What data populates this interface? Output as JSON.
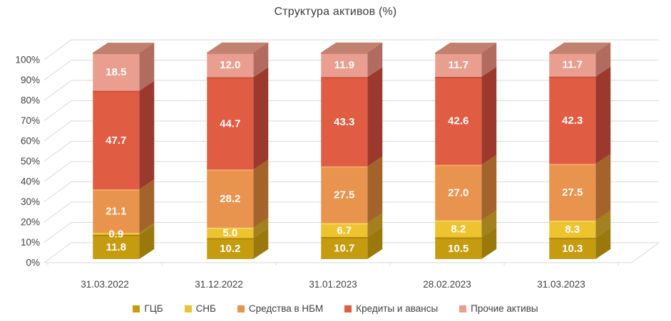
{
  "chart_data": {
    "type": "bar",
    "variant": "3d-stacked-100-percent-column",
    "title": "Структура активов (%)",
    "categories": [
      "31.03.2022",
      "31.12.2022",
      "31.01.2023",
      "28.02.2023",
      "31.03.2023"
    ],
    "series": [
      {
        "name": "ГЦБ",
        "color": "#C59B0F",
        "side_color": "#9A780B",
        "top_color": "#AE850B",
        "values": [
          11.8,
          10.2,
          10.7,
          10.5,
          10.3
        ]
      },
      {
        "name": "СНБ",
        "color": "#EDC32F",
        "side_color": "#A3811E",
        "top_color": "#F3D45C",
        "values": [
          0.9,
          5.0,
          6.7,
          8.2,
          8.3
        ]
      },
      {
        "name": "Средства в НБМ",
        "color": "#E9944E",
        "side_color": "#A4632B",
        "top_color": "#F0A766",
        "values": [
          21.1,
          28.2,
          27.5,
          27.0,
          27.5
        ]
      },
      {
        "name": "Кредиты и авансы",
        "color": "#E05C43",
        "side_color": "#9A392C",
        "top_color": "#C94F3B",
        "values": [
          47.7,
          44.7,
          43.3,
          42.6,
          42.3
        ]
      },
      {
        "name": "Прочие активы",
        "color": "#EA9E8F",
        "side_color": "#B26B5F",
        "top_color": "#C2806F",
        "values": [
          18.5,
          12.0,
          11.9,
          11.7,
          11.7
        ]
      }
    ],
    "y_ticks": [
      "0%",
      "10%",
      "20%",
      "30%",
      "40%",
      "50%",
      "60%",
      "70%",
      "80%",
      "90%",
      "100%"
    ],
    "ylim": [
      0,
      100
    ],
    "value_label_decimals": 1,
    "grid": true,
    "gridline_color": "#D9D9D9",
    "text_color": "#404040",
    "legend_position": "bottom"
  }
}
